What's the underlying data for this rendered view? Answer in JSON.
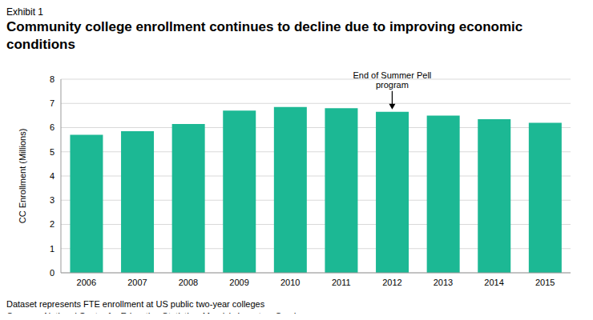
{
  "chart_data": {
    "type": "bar",
    "exhibit_label": "Exhibit 1",
    "title": "Community college enrollment continues to decline due to improving economic conditions",
    "ylabel": "CC Enrollment (Millions)",
    "categories": [
      "2006",
      "2007",
      "2008",
      "2009",
      "2010",
      "2011",
      "2012",
      "2013",
      "2014",
      "2015"
    ],
    "values": [
      5.7,
      5.85,
      6.15,
      6.7,
      6.85,
      6.8,
      6.65,
      6.5,
      6.35,
      6.2
    ],
    "color": "#1CB894",
    "ylim": [
      0,
      8
    ],
    "yticks": [
      0,
      1,
      2,
      3,
      4,
      5,
      6,
      7,
      8
    ],
    "grid": true,
    "annotations": [
      {
        "text": "End of Summer Pell program",
        "category": "2012"
      }
    ],
    "notes": [
      "Dataset represents FTE enrollment at US public two-year colleges",
      "Sources: National Center for Education Statistics, Moody's Investors Service"
    ]
  }
}
